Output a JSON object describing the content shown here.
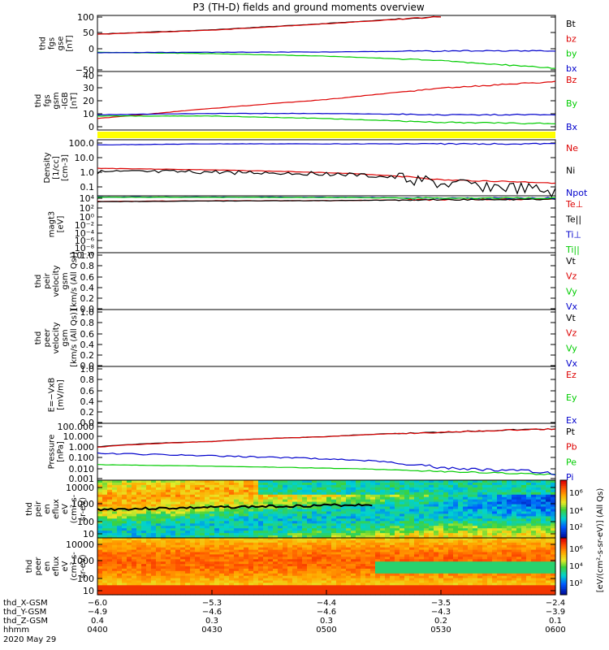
{
  "title": "P3 (TH-D) fields and ground moments overview",
  "colors": {
    "black": "#000000",
    "red": "#dd0000",
    "green": "#00cc00",
    "blue": "#0000cc",
    "yellow": "#ffff00"
  },
  "panels": [
    {
      "id": "fgs",
      "ylabel": [
        "thd",
        "fgs",
        "gse",
        "[nT]"
      ],
      "yticks": [
        "100",
        "50",
        "0",
        "−50"
      ],
      "legend": [
        "Bt",
        "bz",
        "by",
        "bx"
      ],
      "legend_colors": [
        "black",
        "red",
        "green",
        "blue"
      ]
    },
    {
      "id": "fgm",
      "ylabel": [
        "thd",
        "fgs",
        "gsm",
        "-IGB",
        "[nT]"
      ],
      "yticks": [
        "40",
        "30",
        "20",
        "10",
        "0"
      ],
      "legend": [
        "Bz",
        "By",
        "Bx"
      ],
      "legend_colors": [
        "red",
        "green",
        "blue"
      ]
    },
    {
      "id": "density",
      "ylabel": [
        "Density",
        "[1/cc]",
        "[cm-3]"
      ],
      "yticks": [
        "100.0",
        "10.0",
        "1.0",
        "0.1"
      ],
      "legend": [
        "Ne",
        "Ni",
        "Npot"
      ],
      "legend_colors": [
        "red",
        "black",
        "blue"
      ]
    },
    {
      "id": "temp",
      "ylabel": [
        "magt3",
        "[eV]"
      ],
      "yticks": [
        "10⁴",
        "10²",
        "10⁰",
        "10⁻²",
        "10⁻⁴",
        "10⁻⁶",
        "10⁻⁸",
        "10⁻¹⁰"
      ],
      "legend": [
        "Te⊥",
        "Te||",
        "Ti⊥",
        "Ti||"
      ],
      "legend_colors": [
        "red",
        "black",
        "blue",
        "green"
      ]
    },
    {
      "id": "peir_vel",
      "ylabel": [
        "thd",
        "peir",
        "velocity",
        "gsm",
        "[km/s (All Qs)]"
      ],
      "yticks": [
        "1.0",
        "0.8",
        "0.6",
        "0.4",
        "0.2",
        "0.0"
      ],
      "legend": [
        "Vt",
        "Vz",
        "Vy",
        "Vx"
      ],
      "legend_colors": [
        "black",
        "red",
        "green",
        "blue"
      ]
    },
    {
      "id": "peer_vel",
      "ylabel": [
        "thd",
        "peer",
        "velocity",
        "gsm",
        "[km/s (All Qs)]"
      ],
      "yticks": [
        "1.0",
        "0.8",
        "0.6",
        "0.4",
        "0.2",
        "0.0"
      ],
      "legend": [
        "Vt",
        "Vz",
        "Vy",
        "Vx"
      ],
      "legend_colors": [
        "black",
        "red",
        "green",
        "blue"
      ]
    },
    {
      "id": "efield",
      "ylabel": [
        "E=−VxB",
        "[mV/m]"
      ],
      "yticks": [
        "1.0",
        "0.8",
        "0.6",
        "0.4",
        "0.2",
        "0.0"
      ],
      "legend": [
        "Ez",
        "Ey",
        "Ex"
      ],
      "legend_colors": [
        "red",
        "green",
        "blue"
      ]
    },
    {
      "id": "pressure",
      "ylabel": [
        "Pressure",
        "[nPa]"
      ],
      "yticks": [
        "100.000",
        "10.000",
        "1.000",
        "0.100",
        "0.010",
        "0.001"
      ],
      "legend": [
        "Pt",
        "Pb",
        "Pe",
        "Pi"
      ],
      "legend_colors": [
        "black",
        "red",
        "green",
        "blue"
      ]
    },
    {
      "id": "peir_spec",
      "ylabel": [
        "thd",
        "peir",
        "en",
        "eflux",
        "eV",
        "(cm²-s-",
        "sr-eV)"
      ],
      "yticks": [
        "10000",
        "1000",
        "100",
        "10"
      ]
    },
    {
      "id": "peer_spec",
      "ylabel": [
        "thd",
        "peer",
        "en",
        "eflux",
        "eV",
        "(cm²-s-",
        "sr-eV)"
      ],
      "yticks": [
        "10000",
        "1000",
        "100",
        "10"
      ]
    }
  ],
  "colorbar": {
    "ticks": [
      "10⁶",
      "10⁴",
      "10²"
    ],
    "label": "[eV/(cm²-s-sr-eV)] (All Qs)"
  },
  "xaxis": {
    "rows": [
      {
        "label": "thd_X-GSM",
        "values": [
          "−6.0",
          "−5.3",
          "−4.4",
          "−3.5",
          "−2.4"
        ]
      },
      {
        "label": "thd_Y-GSM",
        "values": [
          "−4.9",
          "−4.6",
          "−4.6",
          "−4.3",
          "−3.9"
        ]
      },
      {
        "label": "thd_Z-GSM",
        "values": [
          "0.4",
          "0.3",
          "0.3",
          "0.2",
          "0.1"
        ]
      },
      {
        "label": "hhmm",
        "values": [
          "0400",
          "0430",
          "0500",
          "0530",
          "0600"
        ]
      }
    ],
    "date": "2020 May 29"
  },
  "chart_data": {
    "type": "line",
    "x_times": [
      "0400",
      "0430",
      "0500",
      "0530",
      "0600"
    ],
    "x": [
      0,
      0.25,
      0.5,
      0.75,
      1.0
    ],
    "panels": {
      "fgs": {
        "ylim": [
          -70,
          105
        ],
        "series": [
          {
            "name": "Bt",
            "color": "black",
            "values": [
              47,
              60,
              80,
              102,
              null
            ]
          },
          {
            "name": "bz",
            "color": "red",
            "values": [
              46,
              59,
              79,
              101,
              null
            ]
          },
          {
            "name": "by",
            "color": "green",
            "values": [
              -10,
              -14,
              -22,
              -36,
              -60
            ]
          },
          {
            "name": "bx",
            "color": "blue",
            "values": [
              -11,
              -10,
              -9,
              -6,
              -5
            ]
          }
        ]
      },
      "fgm": {
        "ylim": [
          -3,
          43
        ],
        "series": [
          {
            "name": "Bz",
            "color": "red",
            "values": [
              6,
              14,
              21,
              30,
              35
            ]
          },
          {
            "name": "By",
            "color": "green",
            "values": [
              8,
              8,
              6,
              3,
              2
            ]
          },
          {
            "name": "Bx",
            "color": "blue",
            "values": [
              9,
              10,
              10,
              9,
              9
            ]
          }
        ]
      },
      "density": {
        "ylim_log": [
          -1.5,
          2.4
        ],
        "series": [
          {
            "name": "Ne",
            "color": "red",
            "values": [
              2.6,
              2.0,
              1.3,
              0.4,
              0.25
            ]
          },
          {
            "name": "Ni",
            "color": "black",
            "values": [
              1.4,
              1.4,
              1.1,
              0.2,
              0.05
            ]
          },
          {
            "name": "Npot",
            "color": "blue",
            "values": [
              110,
              130,
              130,
              130,
              130
            ]
          }
        ]
      },
      "temp": {
        "ylim_log": [
          -11,
          4.3
        ],
        "series": [
          {
            "name": "Te⊥",
            "color": "red",
            "values": [
              600,
              900,
              1000,
              1800,
              2500
            ]
          },
          {
            "name": "Te||",
            "color": "black",
            "values": [
              500,
              800,
              1000,
              1700,
              2400
            ]
          },
          {
            "name": "Ti⊥",
            "color": "blue",
            "values": [
              9000,
              9000,
              8000,
              5000,
              5000
            ]
          },
          {
            "name": "Ti||",
            "color": "green",
            "values": [
              8000,
              8000,
              7000,
              4500,
              5000
            ]
          }
        ]
      },
      "pressure": {
        "ylim_log": [
          -3,
          2.1
        ],
        "series": [
          {
            "name": "Pt",
            "color": "black",
            "values": [
              1.0,
              3.0,
              8.0,
              20.0,
              40.0
            ]
          },
          {
            "name": "Pb",
            "color": "red",
            "values": [
              0.9,
              2.9,
              7.9,
              19.5,
              39.0
            ]
          },
          {
            "name": "Pe",
            "color": "green",
            "values": [
              0.025,
              0.018,
              0.012,
              0.006,
              0.003
            ]
          },
          {
            "name": "Pi",
            "color": "blue",
            "values": [
              0.25,
              0.15,
              0.08,
              0.012,
              0.004
            ]
          }
        ]
      }
    }
  }
}
